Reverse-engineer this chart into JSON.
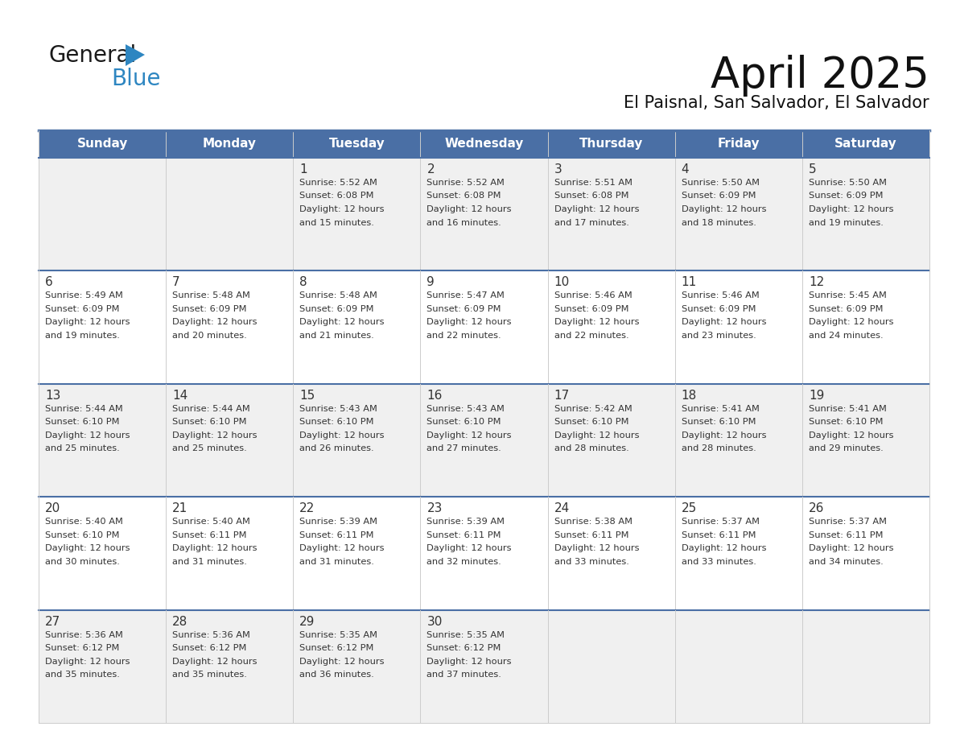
{
  "title": "April 2025",
  "subtitle": "El Paisnal, San Salvador, El Salvador",
  "header_bg": "#4A6FA5",
  "header_text_color": "#FFFFFF",
  "row_bg_light": "#F0F0F0",
  "row_bg_white": "#FFFFFF",
  "text_color": "#333333",
  "grid_color": "#4A6FA5",
  "separator_color": "#4A6FA5",
  "days_of_week": [
    "Sunday",
    "Monday",
    "Tuesday",
    "Wednesday",
    "Thursday",
    "Friday",
    "Saturday"
  ],
  "weeks": [
    [
      {
        "day": "",
        "sunrise": "",
        "sunset": "",
        "daylight": ""
      },
      {
        "day": "",
        "sunrise": "",
        "sunset": "",
        "daylight": ""
      },
      {
        "day": "1",
        "sunrise": "5:52 AM",
        "sunset": "6:08 PM",
        "daylight": "12 hours and 15 minutes."
      },
      {
        "day": "2",
        "sunrise": "5:52 AM",
        "sunset": "6:08 PM",
        "daylight": "12 hours and 16 minutes."
      },
      {
        "day": "3",
        "sunrise": "5:51 AM",
        "sunset": "6:08 PM",
        "daylight": "12 hours and 17 minutes."
      },
      {
        "day": "4",
        "sunrise": "5:50 AM",
        "sunset": "6:09 PM",
        "daylight": "12 hours and 18 minutes."
      },
      {
        "day": "5",
        "sunrise": "5:50 AM",
        "sunset": "6:09 PM",
        "daylight": "12 hours and 19 minutes."
      }
    ],
    [
      {
        "day": "6",
        "sunrise": "5:49 AM",
        "sunset": "6:09 PM",
        "daylight": "12 hours and 19 minutes."
      },
      {
        "day": "7",
        "sunrise": "5:48 AM",
        "sunset": "6:09 PM",
        "daylight": "12 hours and 20 minutes."
      },
      {
        "day": "8",
        "sunrise": "5:48 AM",
        "sunset": "6:09 PM",
        "daylight": "12 hours and 21 minutes."
      },
      {
        "day": "9",
        "sunrise": "5:47 AM",
        "sunset": "6:09 PM",
        "daylight": "12 hours and 22 minutes."
      },
      {
        "day": "10",
        "sunrise": "5:46 AM",
        "sunset": "6:09 PM",
        "daylight": "12 hours and 22 minutes."
      },
      {
        "day": "11",
        "sunrise": "5:46 AM",
        "sunset": "6:09 PM",
        "daylight": "12 hours and 23 minutes."
      },
      {
        "day": "12",
        "sunrise": "5:45 AM",
        "sunset": "6:09 PM",
        "daylight": "12 hours and 24 minutes."
      }
    ],
    [
      {
        "day": "13",
        "sunrise": "5:44 AM",
        "sunset": "6:10 PM",
        "daylight": "12 hours and 25 minutes."
      },
      {
        "day": "14",
        "sunrise": "5:44 AM",
        "sunset": "6:10 PM",
        "daylight": "12 hours and 25 minutes."
      },
      {
        "day": "15",
        "sunrise": "5:43 AM",
        "sunset": "6:10 PM",
        "daylight": "12 hours and 26 minutes."
      },
      {
        "day": "16",
        "sunrise": "5:43 AM",
        "sunset": "6:10 PM",
        "daylight": "12 hours and 27 minutes."
      },
      {
        "day": "17",
        "sunrise": "5:42 AM",
        "sunset": "6:10 PM",
        "daylight": "12 hours and 28 minutes."
      },
      {
        "day": "18",
        "sunrise": "5:41 AM",
        "sunset": "6:10 PM",
        "daylight": "12 hours and 28 minutes."
      },
      {
        "day": "19",
        "sunrise": "5:41 AM",
        "sunset": "6:10 PM",
        "daylight": "12 hours and 29 minutes."
      }
    ],
    [
      {
        "day": "20",
        "sunrise": "5:40 AM",
        "sunset": "6:10 PM",
        "daylight": "12 hours and 30 minutes."
      },
      {
        "day": "21",
        "sunrise": "5:40 AM",
        "sunset": "6:11 PM",
        "daylight": "12 hours and 31 minutes."
      },
      {
        "day": "22",
        "sunrise": "5:39 AM",
        "sunset": "6:11 PM",
        "daylight": "12 hours and 31 minutes."
      },
      {
        "day": "23",
        "sunrise": "5:39 AM",
        "sunset": "6:11 PM",
        "daylight": "12 hours and 32 minutes."
      },
      {
        "day": "24",
        "sunrise": "5:38 AM",
        "sunset": "6:11 PM",
        "daylight": "12 hours and 33 minutes."
      },
      {
        "day": "25",
        "sunrise": "5:37 AM",
        "sunset": "6:11 PM",
        "daylight": "12 hours and 33 minutes."
      },
      {
        "day": "26",
        "sunrise": "5:37 AM",
        "sunset": "6:11 PM",
        "daylight": "12 hours and 34 minutes."
      }
    ],
    [
      {
        "day": "27",
        "sunrise": "5:36 AM",
        "sunset": "6:12 PM",
        "daylight": "12 hours and 35 minutes."
      },
      {
        "day": "28",
        "sunrise": "5:36 AM",
        "sunset": "6:12 PM",
        "daylight": "12 hours and 35 minutes."
      },
      {
        "day": "29",
        "sunrise": "5:35 AM",
        "sunset": "6:12 PM",
        "daylight": "12 hours and 36 minutes."
      },
      {
        "day": "30",
        "sunrise": "5:35 AM",
        "sunset": "6:12 PM",
        "daylight": "12 hours and 37 minutes."
      },
      {
        "day": "",
        "sunrise": "",
        "sunset": "",
        "daylight": ""
      },
      {
        "day": "",
        "sunrise": "",
        "sunset": "",
        "daylight": ""
      },
      {
        "day": "",
        "sunrise": "",
        "sunset": "",
        "daylight": ""
      }
    ]
  ],
  "logo_general_color": "#1a1a1a",
  "logo_blue_color": "#2E86C1",
  "logo_triangle_color": "#2E86C1",
  "background_color": "#FFFFFF"
}
